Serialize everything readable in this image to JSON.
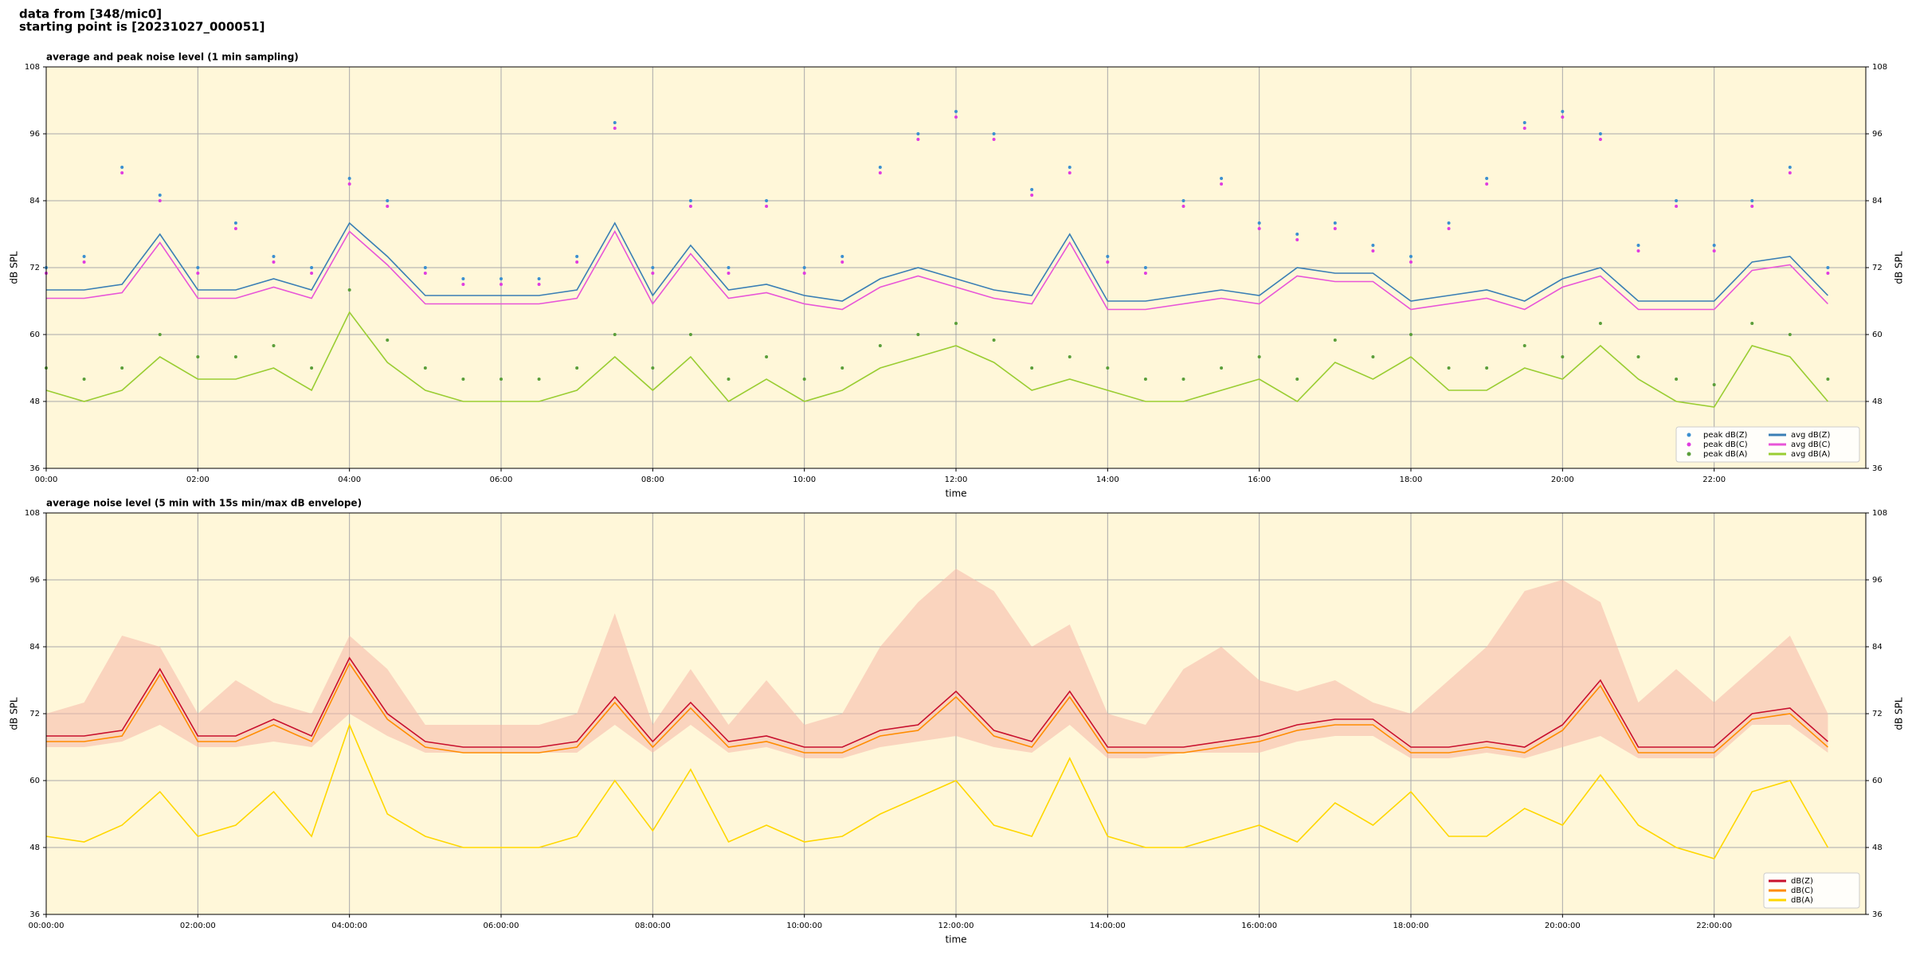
{
  "header": {
    "source": "data from [348/mic0]",
    "start": "starting point is [20231027_000051]"
  },
  "chart_data": [
    {
      "type": "line",
      "title": "average and peak noise level (1 min sampling)",
      "xlabel": "time",
      "ylabel": "dB SPL",
      "background": "#fff7d9",
      "grid": true,
      "legend": "lower right",
      "legend_columns": 2,
      "xlim": [
        0,
        24
      ],
      "ylim": [
        36,
        108
      ],
      "yticks": [
        36,
        48,
        60,
        72,
        84,
        96,
        108
      ],
      "xticks": [
        {
          "value": 0,
          "label": "00:00"
        },
        {
          "value": 2,
          "label": "02:00"
        },
        {
          "value": 4,
          "label": "04:00"
        },
        {
          "value": 6,
          "label": "06:00"
        },
        {
          "value": 8,
          "label": "08:00"
        },
        {
          "value": 10,
          "label": "10:00"
        },
        {
          "value": 12,
          "label": "12:00"
        },
        {
          "value": 14,
          "label": "14:00"
        },
        {
          "value": 16,
          "label": "16:00"
        },
        {
          "value": 18,
          "label": "18:00"
        },
        {
          "value": 20,
          "label": "20:00"
        },
        {
          "value": 22,
          "label": "22:00"
        }
      ],
      "x": [
        0,
        0.5,
        1,
        1.5,
        2,
        2.5,
        3,
        3.5,
        4,
        4.5,
        5,
        5.5,
        6,
        6.5,
        7,
        7.5,
        8,
        8.5,
        9,
        9.5,
        10,
        10.5,
        11,
        11.5,
        12,
        12.5,
        13,
        13.5,
        14,
        14.5,
        15,
        15.5,
        16,
        16.5,
        17,
        17.5,
        18,
        18.5,
        19,
        19.5,
        20,
        20.5,
        21,
        21.5,
        22,
        22.5,
        23,
        23.5
      ],
      "series": [
        {
          "name": "peak dB(Z)",
          "color": "#3b8fd0",
          "style": "points",
          "values": [
            72,
            74,
            90,
            85,
            72,
            80,
            74,
            72,
            88,
            84,
            72,
            70,
            70,
            70,
            74,
            98,
            72,
            84,
            72,
            84,
            72,
            74,
            90,
            96,
            100,
            96,
            86,
            90,
            74,
            72,
            84,
            88,
            80,
            78,
            80,
            76,
            74,
            80,
            88,
            98,
            100,
            96,
            76,
            84,
            76,
            84,
            90,
            72
          ]
        },
        {
          "name": "peak dB(C)",
          "color": "#e03ce0",
          "style": "points",
          "values": [
            71,
            73,
            89,
            84,
            71,
            79,
            73,
            71,
            87,
            83,
            71,
            69,
            69,
            69,
            73,
            97,
            71,
            83,
            71,
            83,
            71,
            73,
            89,
            95,
            99,
            95,
            85,
            89,
            73,
            71,
            83,
            87,
            79,
            77,
            79,
            75,
            73,
            79,
            87,
            97,
            99,
            95,
            75,
            83,
            75,
            83,
            89,
            71
          ]
        },
        {
          "name": "peak dB(A)",
          "color": "#5a9e3a",
          "style": "points",
          "values": [
            54,
            52,
            54,
            60,
            56,
            56,
            58,
            54,
            68,
            59,
            54,
            52,
            52,
            52,
            54,
            60,
            54,
            60,
            52,
            56,
            52,
            54,
            58,
            60,
            62,
            59,
            54,
            56,
            54,
            52,
            52,
            54,
            56,
            52,
            59,
            56,
            60,
            54,
            54,
            58,
            56,
            62,
            56,
            52,
            51,
            62,
            60,
            52
          ]
        },
        {
          "name": "avg dB(Z)",
          "color": "#3a7fb5",
          "style": "line",
          "values": [
            68,
            68,
            69,
            78,
            68,
            68,
            70,
            68,
            80,
            74,
            67,
            67,
            67,
            67,
            68,
            80,
            67,
            76,
            68,
            69,
            67,
            66,
            70,
            72,
            70,
            68,
            67,
            78,
            66,
            66,
            67,
            68,
            67,
            72,
            71,
            71,
            66,
            67,
            68,
            66,
            70,
            72,
            66,
            66,
            66,
            73,
            74,
            67
          ]
        },
        {
          "name": "avg dB(C)",
          "color": "#e855d8",
          "style": "line",
          "values": [
            66.5,
            66.5,
            67.5,
            76.5,
            66.5,
            66.5,
            68.5,
            66.5,
            78.5,
            72.5,
            65.5,
            65.5,
            65.5,
            65.5,
            66.5,
            78.5,
            65.5,
            74.5,
            66.5,
            67.5,
            65.5,
            64.5,
            68.5,
            70.5,
            68.5,
            66.5,
            65.5,
            76.5,
            64.5,
            64.5,
            65.5,
            66.5,
            65.5,
            70.5,
            69.5,
            69.5,
            64.5,
            65.5,
            66.5,
            64.5,
            68.5,
            70.5,
            64.5,
            64.5,
            64.5,
            71.5,
            72.5,
            65.5
          ]
        },
        {
          "name": "avg dB(A)",
          "color": "#9acd32",
          "style": "line",
          "values": [
            50,
            48,
            50,
            56,
            52,
            52,
            54,
            50,
            64,
            55,
            50,
            48,
            48,
            48,
            50,
            56,
            50,
            56,
            48,
            52,
            48,
            50,
            54,
            56,
            58,
            55,
            50,
            52,
            50,
            48,
            48,
            50,
            52,
            48,
            55,
            52,
            56,
            50,
            50,
            54,
            52,
            58,
            52,
            48,
            47,
            58,
            56,
            48
          ]
        }
      ]
    },
    {
      "type": "line",
      "title": "average noise level (5 min with 15s min/max dB envelope)",
      "xlabel": "time",
      "ylabel": "dB SPL",
      "background": "#fff7d9",
      "grid": true,
      "legend": "lower right",
      "legend_columns": 1,
      "xlim": [
        0,
        24
      ],
      "ylim": [
        36,
        108
      ],
      "yticks": [
        36,
        48,
        60,
        72,
        84,
        96,
        108
      ],
      "xticks": [
        {
          "value": 0,
          "label": "00:00:00"
        },
        {
          "value": 2,
          "label": "02:00:00"
        },
        {
          "value": 4,
          "label": "04:00:00"
        },
        {
          "value": 6,
          "label": "06:00:00"
        },
        {
          "value": 8,
          "label": "08:00:00"
        },
        {
          "value": 10,
          "label": "10:00:00"
        },
        {
          "value": 12,
          "label": "12:00:00"
        },
        {
          "value": 14,
          "label": "14:00:00"
        },
        {
          "value": 16,
          "label": "16:00:00"
        },
        {
          "value": 18,
          "label": "18:00:00"
        },
        {
          "value": 20,
          "label": "20:00:00"
        },
        {
          "value": 22,
          "label": "22:00:00"
        }
      ],
      "x": [
        0,
        0.5,
        1,
        1.5,
        2,
        2.5,
        3,
        3.5,
        4,
        4.5,
        5,
        5.5,
        6,
        6.5,
        7,
        7.5,
        8,
        8.5,
        9,
        9.5,
        10,
        10.5,
        11,
        11.5,
        12,
        12.5,
        13,
        13.5,
        14,
        14.5,
        15,
        15.5,
        16,
        16.5,
        17,
        17.5,
        18,
        18.5,
        19,
        19.5,
        20,
        20.5,
        21,
        21.5,
        22,
        22.5,
        23,
        23.5
      ],
      "envelope": {
        "color": "#f5b8a8",
        "upper": [
          72,
          74,
          86,
          84,
          72,
          78,
          74,
          72,
          86,
          80,
          70,
          70,
          70,
          70,
          72,
          90,
          70,
          80,
          70,
          78,
          70,
          72,
          84,
          92,
          98,
          94,
          84,
          88,
          72,
          70,
          80,
          84,
          78,
          76,
          78,
          74,
          72,
          78,
          84,
          94,
          96,
          92,
          74,
          80,
          74,
          80,
          86,
          72
        ],
        "lower": [
          66,
          66,
          67,
          70,
          66,
          66,
          67,
          66,
          72,
          68,
          65,
          65,
          65,
          65,
          65,
          70,
          65,
          70,
          65,
          66,
          64,
          64,
          66,
          67,
          68,
          66,
          65,
          70,
          64,
          64,
          65,
          65,
          65,
          67,
          68,
          68,
          64,
          64,
          65,
          64,
          66,
          68,
          64,
          64,
          64,
          70,
          70,
          65
        ]
      },
      "series": [
        {
          "name": "dB(Z)",
          "color": "#c8102e",
          "style": "line",
          "values": [
            68,
            68,
            69,
            80,
            68,
            68,
            71,
            68,
            82,
            72,
            67,
            66,
            66,
            66,
            67,
            75,
            67,
            74,
            67,
            68,
            66,
            66,
            69,
            70,
            76,
            69,
            67,
            76,
            66,
            66,
            66,
            67,
            68,
            70,
            71,
            71,
            66,
            66,
            67,
            66,
            70,
            78,
            66,
            66,
            66,
            72,
            73,
            67
          ]
        },
        {
          "name": "dB(C)",
          "color": "#ff8c00",
          "style": "line",
          "values": [
            67,
            67,
            68,
            79,
            67,
            67,
            70,
            67,
            81,
            71,
            66,
            65,
            65,
            65,
            66,
            74,
            66,
            73,
            66,
            67,
            65,
            65,
            68,
            69,
            75,
            68,
            66,
            75,
            65,
            65,
            65,
            66,
            67,
            69,
            70,
            70,
            65,
            65,
            66,
            65,
            69,
            77,
            65,
            65,
            65,
            71,
            72,
            66
          ]
        },
        {
          "name": "dB(A)",
          "color": "#ffd700",
          "style": "line",
          "values": [
            50,
            49,
            52,
            58,
            50,
            52,
            58,
            50,
            70,
            54,
            50,
            48,
            48,
            48,
            50,
            60,
            51,
            62,
            49,
            52,
            49,
            50,
            54,
            57,
            60,
            52,
            50,
            64,
            50,
            48,
            48,
            50,
            52,
            49,
            56,
            52,
            58,
            50,
            50,
            55,
            52,
            61,
            52,
            48,
            46,
            58,
            60,
            48
          ]
        }
      ]
    }
  ]
}
